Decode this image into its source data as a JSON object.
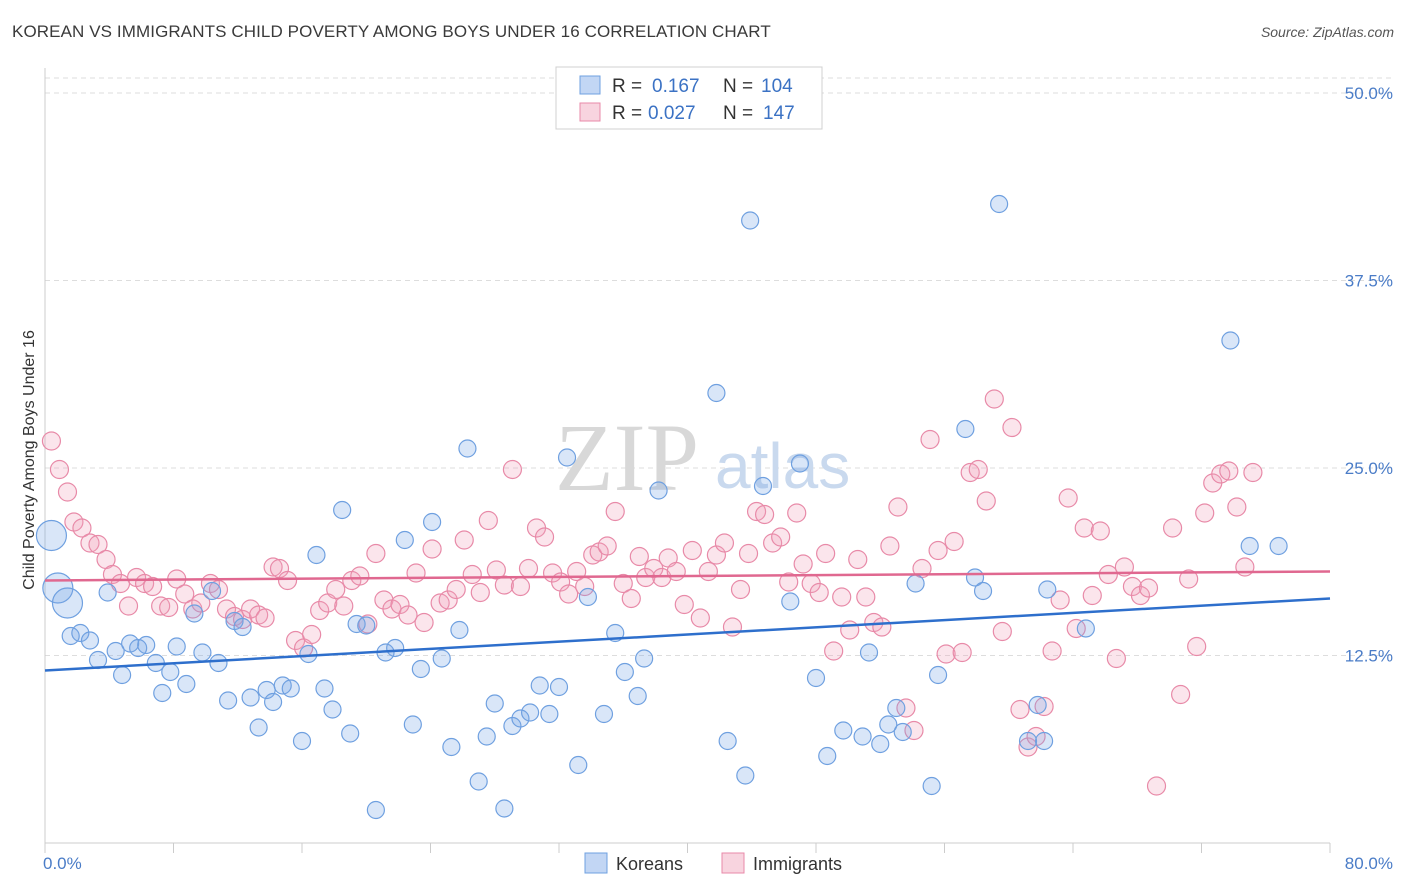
{
  "title": "KOREAN VS IMMIGRANTS CHILD POVERTY AMONG BOYS UNDER 16 CORRELATION CHART",
  "source": "Source: ZipAtlas.com",
  "watermark": {
    "zip": "ZIP",
    "atlas": "atlas"
  },
  "colors": {
    "korean": "#6fa0e0",
    "korean_fill": "rgba(120,165,230,0.28)",
    "korean_line": "#2e6fcc",
    "immigrant": "#e88aa8",
    "immigrant_fill": "rgba(240,160,185,0.28)",
    "immigrant_line": "#e06890",
    "grid": "#dddddd",
    "tick_label": "#4a7cc7"
  },
  "legend": {
    "korean": {
      "r_label": "R = ",
      "r_value": "0.167",
      "n_label": "N = ",
      "n_value": "104"
    },
    "immigrant": {
      "r_label": "R = ",
      "r_value": "0.027",
      "n_label": "N = ",
      "n_value": "147"
    }
  },
  "bottom_legend": {
    "korean": "Koreans",
    "immigrant": "Immigrants"
  },
  "chart_data": {
    "type": "scatter",
    "title": "KOREAN VS IMMIGRANTS CHILD POVERTY AMONG BOYS UNDER 16 CORRELATION CHART",
    "xlabel": "",
    "ylabel": "Child Poverty Among Boys Under 16",
    "xlim": [
      0,
      80
    ],
    "ylim": [
      0,
      51
    ],
    "x_tick_labels": [
      "0.0%",
      "80.0%"
    ],
    "y_ticks": [
      12.5,
      25.0,
      37.5,
      50.0
    ],
    "y_tick_labels": [
      "12.5%",
      "25.0%",
      "37.5%",
      "50.0%"
    ],
    "grid": true,
    "legend_position": "top-center",
    "series": [
      {
        "name": "Koreans",
        "r": 0.167,
        "n": 104,
        "trend": {
          "x": [
            0,
            80
          ],
          "y": [
            11.5,
            16.3
          ]
        },
        "points": [
          [
            0.4,
            20.5,
            1
          ],
          [
            0.8,
            17.0,
            1
          ],
          [
            1.4,
            16.0,
            1
          ],
          [
            1.6,
            13.8,
            0
          ],
          [
            2.2,
            14.0,
            0
          ],
          [
            2.8,
            13.5,
            0
          ],
          [
            3.3,
            12.2,
            0
          ],
          [
            3.9,
            16.7,
            0
          ],
          [
            4.4,
            12.8,
            0
          ],
          [
            4.8,
            11.2,
            0
          ],
          [
            5.3,
            13.3,
            0
          ],
          [
            5.8,
            13.0,
            0
          ],
          [
            6.3,
            13.2,
            0
          ],
          [
            6.9,
            12.0,
            0
          ],
          [
            7.3,
            10.0,
            0
          ],
          [
            7.8,
            11.4,
            0
          ],
          [
            8.2,
            13.1,
            0
          ],
          [
            8.8,
            10.6,
            0
          ],
          [
            9.3,
            15.3,
            0
          ],
          [
            9.8,
            12.7,
            0
          ],
          [
            10.4,
            16.8,
            0
          ],
          [
            10.8,
            12.0,
            0
          ],
          [
            11.4,
            9.5,
            0
          ],
          [
            11.8,
            14.8,
            0
          ],
          [
            12.3,
            14.4,
            0
          ],
          [
            12.8,
            9.7,
            0
          ],
          [
            13.3,
            7.7,
            0
          ],
          [
            13.8,
            10.2,
            0
          ],
          [
            14.2,
            9.4,
            0
          ],
          [
            14.8,
            10.5,
            0
          ],
          [
            15.3,
            10.3,
            0
          ],
          [
            16.0,
            6.8,
            0
          ],
          [
            16.4,
            12.6,
            0
          ],
          [
            16.9,
            19.2,
            0
          ],
          [
            17.4,
            10.3,
            0
          ],
          [
            17.9,
            8.9,
            0
          ],
          [
            18.5,
            22.2,
            0
          ],
          [
            19.0,
            7.3,
            0
          ],
          [
            19.4,
            14.6,
            0
          ],
          [
            20.0,
            14.5,
            0
          ],
          [
            20.6,
            2.2,
            0
          ],
          [
            21.2,
            12.7,
            0
          ],
          [
            21.8,
            13.0,
            0
          ],
          [
            22.4,
            20.2,
            0
          ],
          [
            22.9,
            7.9,
            0
          ],
          [
            23.4,
            11.6,
            0
          ],
          [
            24.1,
            21.4,
            0
          ],
          [
            24.7,
            12.3,
            0
          ],
          [
            25.3,
            6.4,
            0
          ],
          [
            25.8,
            14.2,
            0
          ],
          [
            26.3,
            26.3,
            0
          ],
          [
            27.0,
            4.1,
            0
          ],
          [
            27.5,
            7.1,
            0
          ],
          [
            28.0,
            9.3,
            0
          ],
          [
            28.6,
            2.3,
            0
          ],
          [
            29.1,
            7.8,
            0
          ],
          [
            29.6,
            8.3,
            0
          ],
          [
            30.2,
            8.7,
            0
          ],
          [
            30.8,
            10.5,
            0
          ],
          [
            31.4,
            8.6,
            0
          ],
          [
            32.0,
            10.4,
            0
          ],
          [
            32.5,
            25.7,
            0
          ],
          [
            33.2,
            5.2,
            0
          ],
          [
            33.8,
            16.4,
            0
          ],
          [
            34.8,
            8.6,
            0
          ],
          [
            35.5,
            14.0,
            0
          ],
          [
            36.1,
            11.4,
            0
          ],
          [
            36.9,
            9.8,
            0
          ],
          [
            37.3,
            12.3,
            0
          ],
          [
            38.2,
            23.5,
            0
          ],
          [
            41.8,
            30.0,
            0
          ],
          [
            42.5,
            6.8,
            0
          ],
          [
            43.6,
            4.5,
            0
          ],
          [
            43.9,
            41.5,
            0
          ],
          [
            44.7,
            23.8,
            0
          ],
          [
            46.4,
            16.1,
            0
          ],
          [
            47.0,
            25.3,
            0
          ],
          [
            48.0,
            11.0,
            0
          ],
          [
            48.7,
            5.8,
            0
          ],
          [
            49.7,
            7.5,
            0
          ],
          [
            50.9,
            7.1,
            0
          ],
          [
            51.3,
            12.7,
            0
          ],
          [
            52.0,
            6.6,
            0
          ],
          [
            52.5,
            7.9,
            0
          ],
          [
            53.0,
            9.0,
            0
          ],
          [
            53.4,
            7.4,
            0
          ],
          [
            54.2,
            17.3,
            0
          ],
          [
            55.2,
            3.8,
            0
          ],
          [
            55.6,
            11.2,
            0
          ],
          [
            57.3,
            27.6,
            0
          ],
          [
            57.9,
            17.7,
            0
          ],
          [
            58.4,
            16.8,
            0
          ],
          [
            59.4,
            42.6,
            0
          ],
          [
            61.2,
            6.8,
            0
          ],
          [
            62.2,
            6.8,
            0
          ],
          [
            61.8,
            9.2,
            0
          ],
          [
            62.4,
            16.9,
            0
          ],
          [
            64.8,
            14.3,
            0
          ],
          [
            73.8,
            33.5,
            0
          ],
          [
            75.0,
            19.8,
            0
          ],
          [
            76.8,
            19.8,
            0
          ]
        ]
      },
      {
        "name": "Immigrants",
        "r": 0.027,
        "n": 147,
        "trend": {
          "x": [
            0,
            80
          ],
          "y": [
            17.5,
            18.1
          ]
        },
        "points": [
          [
            0.4,
            26.8
          ],
          [
            0.9,
            24.9
          ],
          [
            1.4,
            23.4
          ],
          [
            1.8,
            21.4
          ],
          [
            2.3,
            21.0
          ],
          [
            2.8,
            20.0
          ],
          [
            3.3,
            19.9
          ],
          [
            3.8,
            18.9
          ],
          [
            4.2,
            17.9
          ],
          [
            4.7,
            17.3
          ],
          [
            5.2,
            15.8
          ],
          [
            5.7,
            17.7
          ],
          [
            6.2,
            17.3
          ],
          [
            6.7,
            17.1
          ],
          [
            7.2,
            15.8
          ],
          [
            7.7,
            15.7
          ],
          [
            8.2,
            17.6
          ],
          [
            8.7,
            16.6
          ],
          [
            9.2,
            15.6
          ],
          [
            9.7,
            16.0
          ],
          [
            10.3,
            17.3
          ],
          [
            10.8,
            16.9
          ],
          [
            11.3,
            15.6
          ],
          [
            11.8,
            15.1
          ],
          [
            12.3,
            14.9
          ],
          [
            12.8,
            15.6
          ],
          [
            13.3,
            15.2
          ],
          [
            13.7,
            15.0
          ],
          [
            14.2,
            18.4
          ],
          [
            14.6,
            18.3
          ],
          [
            15.1,
            17.5
          ],
          [
            15.6,
            13.5
          ],
          [
            16.1,
            13.0
          ],
          [
            16.6,
            13.9
          ],
          [
            17.1,
            15.5
          ],
          [
            17.6,
            16.0
          ],
          [
            18.1,
            16.9
          ],
          [
            18.6,
            15.8
          ],
          [
            19.1,
            17.5
          ],
          [
            19.6,
            17.8
          ],
          [
            20.1,
            14.6
          ],
          [
            20.6,
            19.3
          ],
          [
            21.1,
            16.2
          ],
          [
            21.6,
            15.6
          ],
          [
            22.1,
            15.9
          ],
          [
            22.6,
            15.2
          ],
          [
            23.1,
            18.0
          ],
          [
            23.6,
            14.7
          ],
          [
            24.1,
            19.6
          ],
          [
            24.6,
            16.0
          ],
          [
            25.1,
            16.2
          ],
          [
            25.6,
            16.9
          ],
          [
            26.1,
            20.2
          ],
          [
            26.6,
            17.9
          ],
          [
            27.1,
            16.7
          ],
          [
            27.6,
            21.5
          ],
          [
            28.1,
            18.2
          ],
          [
            28.6,
            17.2
          ],
          [
            29.1,
            24.9
          ],
          [
            29.6,
            17.1
          ],
          [
            30.1,
            18.3
          ],
          [
            30.6,
            21.0
          ],
          [
            31.1,
            20.4
          ],
          [
            31.6,
            18.0
          ],
          [
            32.1,
            17.4
          ],
          [
            32.6,
            16.6
          ],
          [
            33.1,
            18.1
          ],
          [
            33.6,
            17.1
          ],
          [
            34.1,
            19.2
          ],
          [
            34.5,
            19.4
          ],
          [
            35.0,
            19.8
          ],
          [
            35.5,
            22.1
          ],
          [
            36.0,
            17.3
          ],
          [
            36.5,
            16.3
          ],
          [
            37.0,
            19.1
          ],
          [
            37.4,
            17.7
          ],
          [
            37.9,
            18.3
          ],
          [
            38.4,
            17.7
          ],
          [
            38.8,
            19.0
          ],
          [
            39.3,
            18.1
          ],
          [
            39.8,
            15.9
          ],
          [
            40.3,
            19.5
          ],
          [
            40.8,
            15.0
          ],
          [
            41.3,
            18.1
          ],
          [
            41.8,
            19.2
          ],
          [
            42.3,
            20.0
          ],
          [
            42.8,
            14.4
          ],
          [
            43.3,
            16.9
          ],
          [
            43.8,
            19.3
          ],
          [
            44.3,
            22.1
          ],
          [
            44.8,
            21.9
          ],
          [
            45.3,
            20.0
          ],
          [
            45.8,
            20.4
          ],
          [
            46.3,
            17.4
          ],
          [
            46.8,
            22.0
          ],
          [
            47.2,
            18.6
          ],
          [
            47.7,
            17.3
          ],
          [
            48.2,
            16.7
          ],
          [
            48.6,
            19.3
          ],
          [
            49.1,
            12.8
          ],
          [
            49.6,
            16.4
          ],
          [
            50.1,
            14.2
          ],
          [
            50.6,
            18.9
          ],
          [
            51.1,
            16.4
          ],
          [
            51.6,
            14.7
          ],
          [
            52.1,
            14.4
          ],
          [
            52.6,
            19.8
          ],
          [
            53.1,
            22.4
          ],
          [
            53.6,
            9.0
          ],
          [
            54.1,
            7.5
          ],
          [
            54.6,
            18.3
          ],
          [
            55.1,
            26.9
          ],
          [
            55.6,
            19.5
          ],
          [
            56.1,
            12.6
          ],
          [
            56.6,
            20.1
          ],
          [
            57.1,
            12.7
          ],
          [
            57.6,
            24.7
          ],
          [
            58.1,
            24.9
          ],
          [
            58.6,
            22.8
          ],
          [
            59.1,
            29.6
          ],
          [
            59.6,
            14.1
          ],
          [
            60.2,
            27.7
          ],
          [
            60.7,
            8.9
          ],
          [
            61.2,
            6.4
          ],
          [
            61.7,
            7.1
          ],
          [
            62.2,
            9.1
          ],
          [
            62.7,
            12.8
          ],
          [
            63.2,
            16.2
          ],
          [
            63.7,
            23.0
          ],
          [
            64.2,
            14.3
          ],
          [
            64.7,
            21.0
          ],
          [
            65.2,
            16.5
          ],
          [
            65.7,
            20.8
          ],
          [
            66.2,
            17.9
          ],
          [
            66.7,
            12.3
          ],
          [
            67.2,
            18.4
          ],
          [
            67.7,
            17.1
          ],
          [
            68.2,
            16.5
          ],
          [
            68.7,
            17.0
          ],
          [
            69.2,
            3.8
          ],
          [
            70.2,
            21.0
          ],
          [
            70.7,
            9.9
          ],
          [
            71.2,
            17.6
          ],
          [
            71.7,
            13.1
          ],
          [
            72.2,
            22.0
          ],
          [
            72.7,
            24.0
          ],
          [
            73.2,
            24.6
          ],
          [
            73.7,
            24.8
          ],
          [
            74.2,
            22.4
          ],
          [
            74.7,
            18.4
          ],
          [
            75.2,
            24.7
          ]
        ]
      }
    ]
  }
}
